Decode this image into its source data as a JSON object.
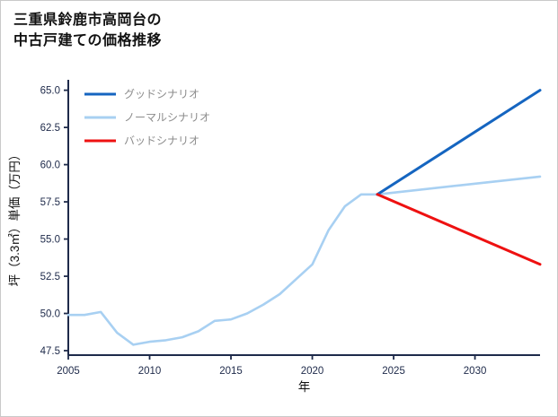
{
  "figure": {
    "background": "#ffffff",
    "border_color": "#c9c9c9"
  },
  "chart_data": {
    "type": "line",
    "title_lines": [
      "三重県鈴鹿市高岡台の",
      "中古戸建ての価格推移"
    ],
    "xlabel": "年",
    "ylabel": "坪（3.3㎡）単価（万円）",
    "xlim": [
      2005,
      2034
    ],
    "ylim": [
      47.2,
      65.7
    ],
    "xticks": [
      2005,
      2010,
      2015,
      2020,
      2025,
      2030
    ],
    "yticks": [
      47.5,
      50.0,
      52.5,
      55.0,
      57.5,
      60.0,
      62.5,
      65.0
    ],
    "grid": false,
    "legend_position": "upper-left",
    "axis_color": "#1e2a4a",
    "tick_label_color": "#1e2a4a",
    "legend_text_color": "#8c8c8c",
    "draw_order": [
      1,
      0,
      2
    ],
    "series": [
      {
        "name": "グッドシナリオ",
        "color": "#1565c0",
        "width": 3,
        "x": [
          2024,
          2034
        ],
        "y": [
          58.0,
          65.0
        ]
      },
      {
        "name": "ノーマルシナリオ",
        "color": "#a8d0f2",
        "width": 2.6,
        "x": [
          2005,
          2006,
          2007,
          2008,
          2009,
          2010,
          2011,
          2012,
          2013,
          2014,
          2015,
          2016,
          2017,
          2018,
          2019,
          2020,
          2021,
          2022,
          2023,
          2024,
          2029,
          2034
        ],
        "y": [
          49.9,
          49.9,
          50.1,
          48.7,
          47.9,
          48.1,
          48.2,
          48.4,
          48.8,
          49.5,
          49.6,
          50.0,
          50.6,
          51.3,
          52.3,
          53.3,
          55.6,
          57.2,
          58.0,
          58.0,
          58.6,
          59.2
        ]
      },
      {
        "name": "バッドシナリオ",
        "color": "#ee1111",
        "width": 3,
        "x": [
          2024,
          2034
        ],
        "y": [
          58.0,
          53.3
        ]
      }
    ]
  }
}
